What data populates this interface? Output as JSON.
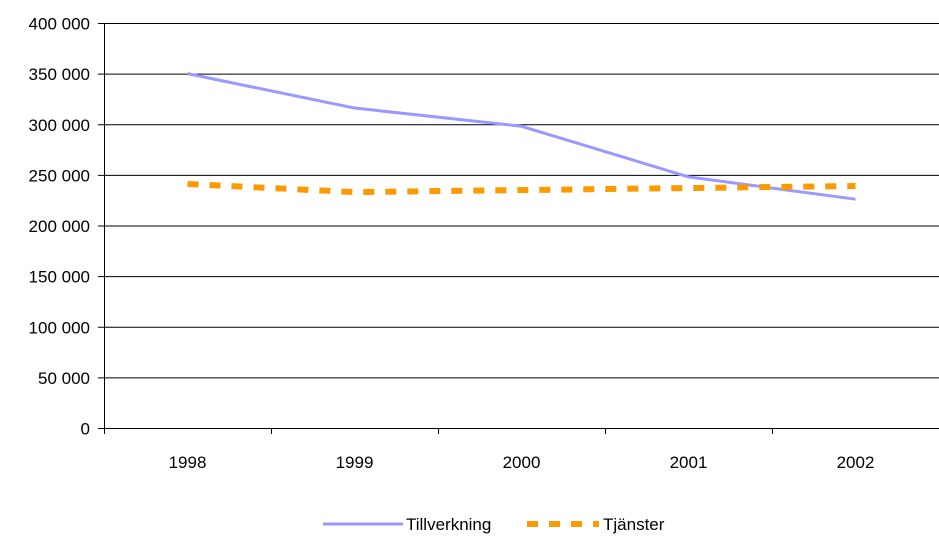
{
  "chart_data": {
    "type": "line",
    "title": "",
    "xlabel": "",
    "ylabel": "",
    "categories": [
      "1998",
      "1999",
      "2000",
      "2001",
      "2002"
    ],
    "ylim": [
      0,
      400000
    ],
    "y_ticks": [
      0,
      50000,
      100000,
      150000,
      200000,
      250000,
      300000,
      350000,
      400000
    ],
    "y_tick_labels": [
      "0",
      "50 000",
      "100 000",
      "150 000",
      "200 000",
      "250 000",
      "300 000",
      "350 000",
      "400 000"
    ],
    "grid": true,
    "legend_position": "bottom",
    "series": [
      {
        "name": "Tillverkning",
        "values": [
          350000,
          316000,
          298000,
          248000,
          226000
        ],
        "color": "#9999ff",
        "style": "solid"
      },
      {
        "name": "Tjänster",
        "values": [
          241000,
          233000,
          235000,
          237000,
          239000
        ],
        "color": "#ff9900",
        "style": "dashed"
      }
    ]
  }
}
